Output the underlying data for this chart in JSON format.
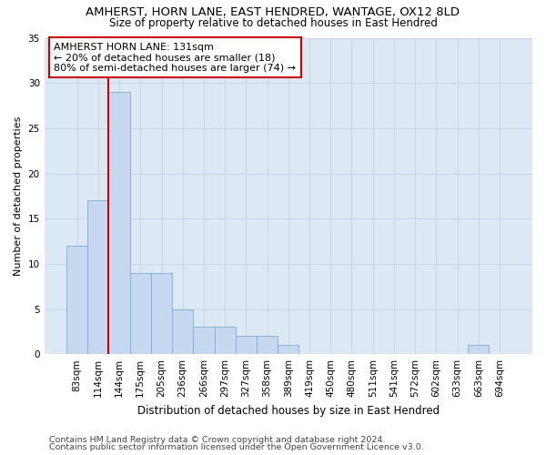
{
  "title_line1": "AMHERST, HORN LANE, EAST HENDRED, WANTAGE, OX12 8LD",
  "title_line2": "Size of property relative to detached houses in East Hendred",
  "xlabel": "Distribution of detached houses by size in East Hendred",
  "ylabel": "Number of detached properties",
  "categories": [
    "83sqm",
    "114sqm",
    "144sqm",
    "175sqm",
    "205sqm",
    "236sqm",
    "266sqm",
    "297sqm",
    "327sqm",
    "358sqm",
    "389sqm",
    "419sqm",
    "450sqm",
    "480sqm",
    "511sqm",
    "541sqm",
    "572sqm",
    "602sqm",
    "633sqm",
    "663sqm",
    "694sqm"
  ],
  "values": [
    12,
    17,
    29,
    9,
    9,
    5,
    3,
    3,
    2,
    2,
    1,
    0,
    0,
    0,
    0,
    0,
    0,
    0,
    0,
    1,
    0
  ],
  "bar_color": "#c5d8f0",
  "bar_edge_color": "#7aadd4",
  "vline_color": "#cc0000",
  "vline_x": 1.5,
  "annotation_text": "AMHERST HORN LANE: 131sqm\n← 20% of detached houses are smaller (18)\n80% of semi-detached houses are larger (74) →",
  "annotation_box_color": "#ffffff",
  "annotation_box_edge_color": "#cc0000",
  "ylim": [
    0,
    35
  ],
  "yticks": [
    0,
    5,
    10,
    15,
    20,
    25,
    30,
    35
  ],
  "grid_color": "#c8d4e8",
  "bg_color": "#dde8f5",
  "footer_line1": "Contains HM Land Registry data © Crown copyright and database right 2024.",
  "footer_line2": "Contains public sector information licensed under the Open Government Licence v3.0.",
  "title_fontsize": 9.5,
  "subtitle_fontsize": 8.5,
  "ylabel_fontsize": 8,
  "xlabel_fontsize": 8.5,
  "tick_fontsize": 7.5,
  "annotation_fontsize": 8,
  "footer_fontsize": 6.8
}
